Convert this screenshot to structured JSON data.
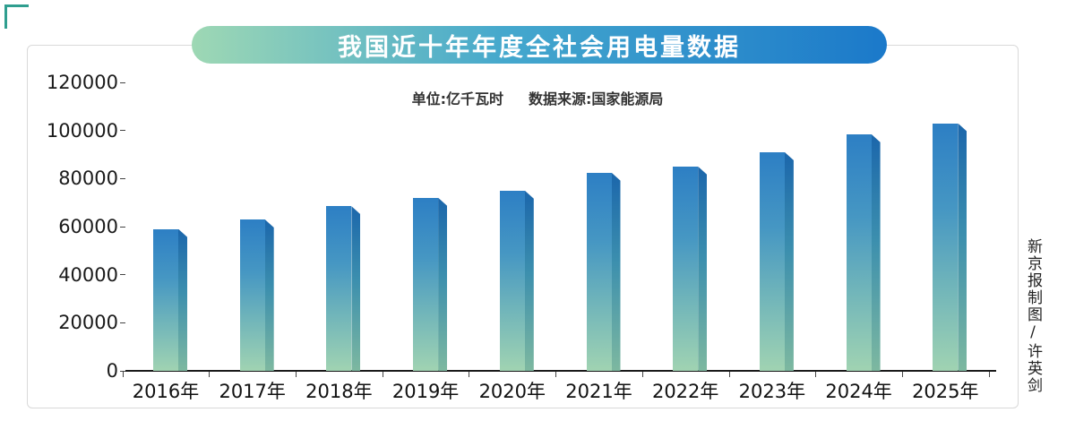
{
  "title": "我国近十年年度全社会用电量数据",
  "subtitle": {
    "unit": "单位:亿千瓦时",
    "source": "数据来源:国家能源局"
  },
  "credit": "新京报制图/许英剑",
  "colors": {
    "banner_gradient_start": "#9ed8b4",
    "banner_gradient_end": "#1b79ca",
    "bar_front_top": "#2d7fc4",
    "bar_front_bottom": "#a0d3b2",
    "bar_side_top": "#1b66ab",
    "bar_side_bottom": "#7db8a0",
    "axis_color": "#1a1a1a",
    "corner_mark": "#2f9e8f"
  },
  "chart_data": {
    "type": "bar",
    "title": "我国近十年年度全社会用电量数据",
    "unit_label": "单位:亿千瓦时",
    "source_label": "数据来源:国家能源局",
    "categories": [
      "2016年",
      "2017年",
      "2018年",
      "2019年",
      "2020年",
      "2021年",
      "2022年",
      "2023年",
      "2024年",
      "2025年"
    ],
    "values": [
      59000,
      63000,
      68500,
      72000,
      75000,
      82500,
      85000,
      91000,
      98500,
      103000
    ],
    "xlabel": "",
    "ylabel": "",
    "ylim": [
      0,
      120000
    ],
    "yticks": [
      0,
      20000,
      40000,
      60000,
      80000,
      100000,
      120000
    ],
    "grid": false,
    "legend": false
  }
}
